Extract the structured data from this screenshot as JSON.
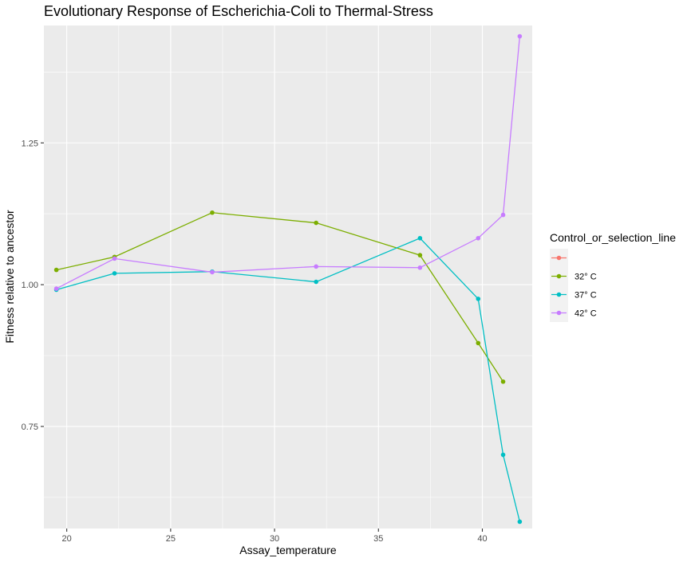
{
  "chart_data": {
    "type": "line",
    "title": "Evolutionary Response of Escherichia-Coli to Thermal-Stress",
    "xlabel": "Assay_temperature",
    "ylabel": "Fitness relative to ancestor",
    "xlim": [
      18.9,
      42.4
    ],
    "ylim": [
      0.57,
      1.457
    ],
    "x_ticks": [
      20,
      25,
      30,
      35,
      40
    ],
    "x_tick_labels": [
      "20",
      "25",
      "30",
      "35",
      "40"
    ],
    "y_ticks": [
      0.75,
      1.0,
      1.25
    ],
    "y_tick_labels": [
      "0.75",
      "1.00",
      "1.25"
    ],
    "grid": true,
    "legend_position": "right",
    "legend_title": "Control_or_selection_line",
    "series": [
      {
        "name": "",
        "color": "#F8766D",
        "x": [],
        "y": []
      },
      {
        "name": "32° C",
        "color": "#7CAE00",
        "x": [
          19.5,
          22.3,
          27.0,
          32.0,
          37.0,
          39.8,
          41.0
        ],
        "y": [
          1.026,
          1.049,
          1.127,
          1.109,
          1.052,
          0.897,
          0.829
        ]
      },
      {
        "name": "37° C",
        "color": "#00BFC4",
        "x": [
          19.5,
          22.3,
          27.0,
          32.0,
          37.0,
          39.8,
          41.0,
          41.8
        ],
        "y": [
          0.991,
          1.02,
          1.023,
          1.005,
          1.082,
          0.975,
          0.7,
          0.582
        ]
      },
      {
        "name": "42° C",
        "color": "#C77CFF",
        "x": [
          19.5,
          22.3,
          27.0,
          32.0,
          37.0,
          39.8,
          41.0,
          41.8
        ],
        "y": [
          0.993,
          1.046,
          1.022,
          1.032,
          1.03,
          1.082,
          1.123,
          1.438
        ]
      }
    ]
  }
}
